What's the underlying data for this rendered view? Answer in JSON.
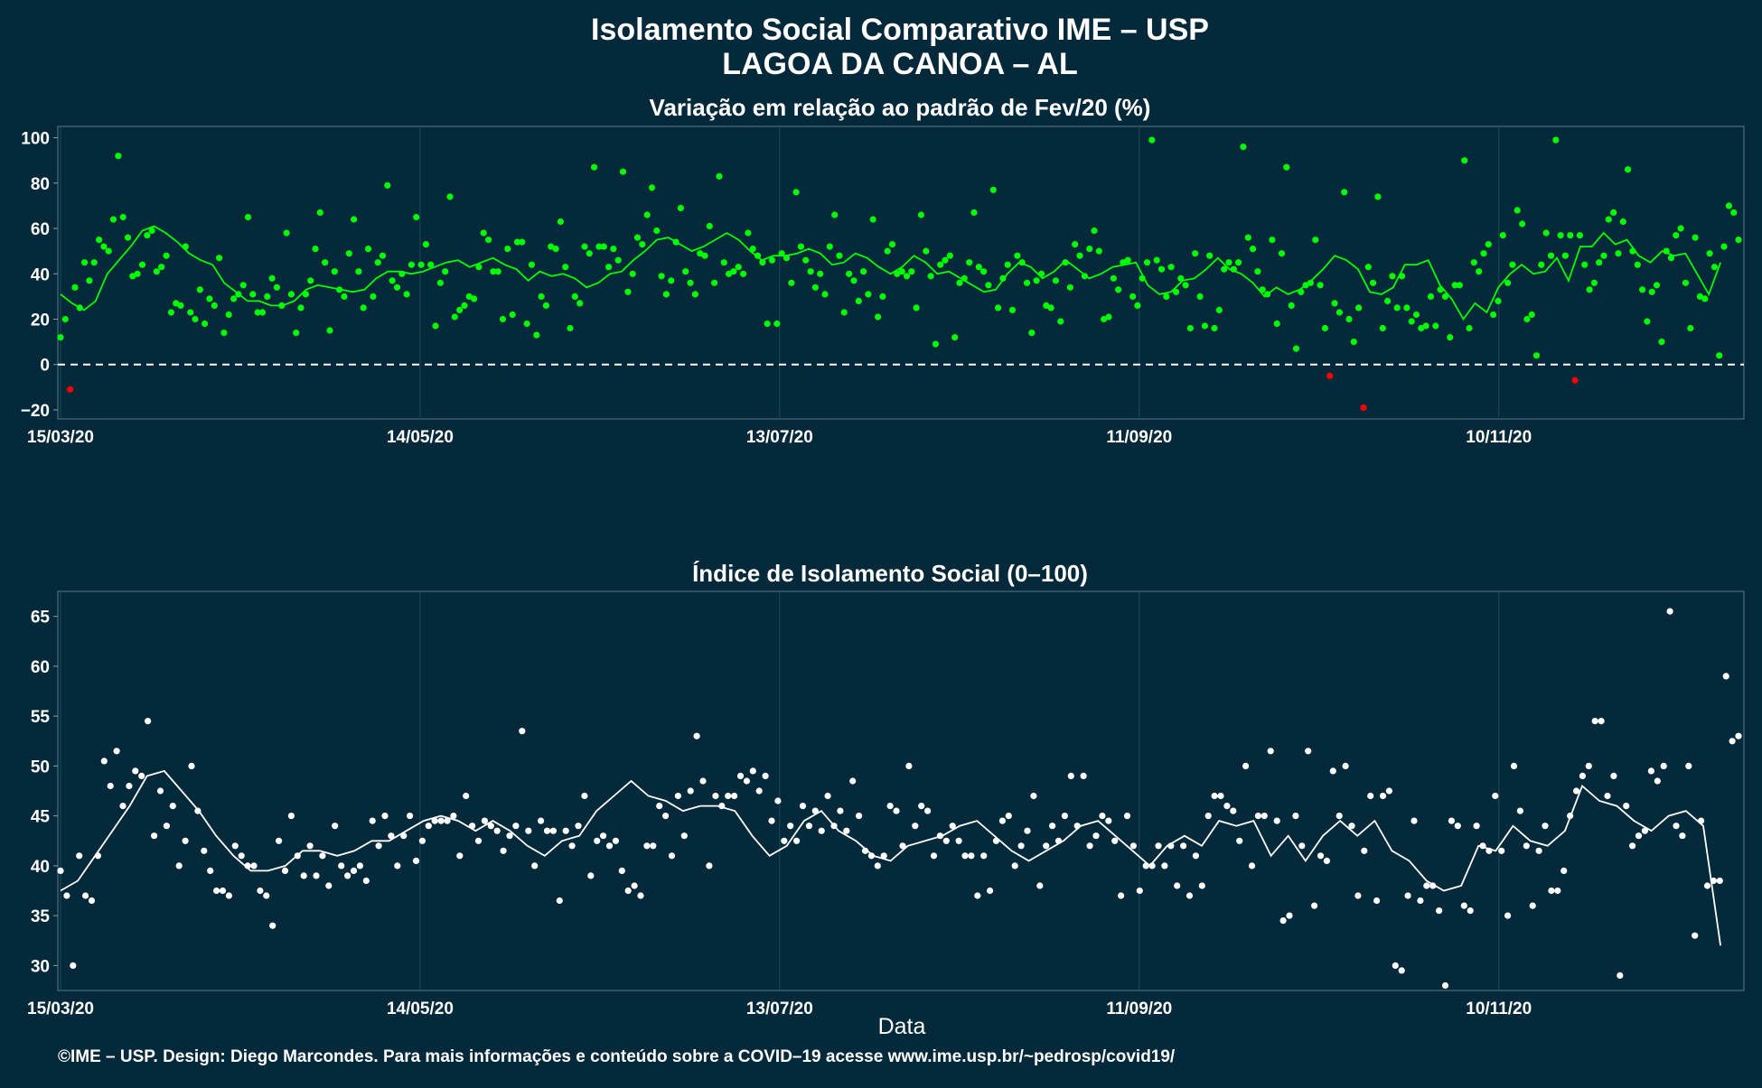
{
  "header": {
    "title_line1": "Isolamento Social Comparativo IME – USP",
    "title_line2": "LAGOA DA CANOA – AL"
  },
  "xlabel": "Data",
  "caption": "©IME – USP. Design: Diego Marcondes. Para mais informações e conteúdo sobre a COVID–19 acesse www.ime.usp.br/~pedrosp/covid19/",
  "colors": {
    "background": "#04293a",
    "positive": "#00ff00",
    "negative": "#ff0000",
    "index_points": "#ffffff",
    "moving_average_tail": "#ffffff",
    "grid": "#1c4a57",
    "zero_line": "#ffffff"
  },
  "chart_data": [
    {
      "type": "scatter",
      "title": "Variação em relação ao padrão de Fev/20 (%)",
      "x_start": "2020-03-15",
      "x_end": "2020-12-20",
      "x_ticks": [
        {
          "date": "2020-03-15",
          "label": "15/03/20"
        },
        {
          "date": "2020-05-14",
          "label": "14/05/20"
        },
        {
          "date": "2020-07-13",
          "label": "13/07/20"
        },
        {
          "date": "2020-09-11",
          "label": "11/09/20"
        },
        {
          "date": "2020-11-10",
          "label": "10/11/20"
        }
      ],
      "y_ticks": [
        -20,
        0,
        20,
        40,
        60,
        80,
        100
      ],
      "ylim": [
        -24,
        105
      ],
      "reference_line": 0,
      "grid": true,
      "series": [
        {
          "role": "points",
          "values": [
            12,
            20,
            -11,
            34,
            25,
            45,
            37,
            45,
            55,
            52,
            50,
            64,
            92,
            65,
            56,
            39,
            40,
            44,
            57,
            59,
            41,
            43,
            48,
            23,
            27,
            26,
            52,
            23,
            20,
            33,
            18,
            29,
            26,
            47,
            14,
            22,
            29,
            31,
            35,
            65,
            31,
            23,
            23,
            30,
            38,
            34,
            26,
            58,
            31,
            14,
            25,
            31,
            37,
            51,
            67,
            45,
            15,
            41,
            33,
            30,
            49,
            64,
            41,
            25,
            51,
            30,
            45,
            48,
            79,
            37,
            34,
            40,
            31,
            44,
            65,
            44,
            53,
            44,
            17,
            36,
            41,
            74,
            21,
            24,
            26,
            30,
            29,
            43,
            58,
            55,
            41,
            41,
            20,
            51,
            22,
            54,
            54,
            18,
            44,
            13,
            30,
            26,
            52,
            51,
            63,
            43,
            16,
            30,
            27,
            52,
            49,
            87,
            52,
            52,
            43,
            51,
            46,
            85,
            32,
            40,
            56,
            53,
            66,
            78,
            59,
            39,
            31,
            37,
            54,
            69,
            41,
            36,
            31,
            49,
            48,
            61,
            36,
            83,
            45,
            40,
            41,
            43,
            40,
            58,
            51,
            48,
            45,
            18,
            46,
            18,
            49,
            47,
            36,
            76,
            52,
            46,
            41,
            34,
            40,
            31,
            52,
            66,
            48,
            23,
            40,
            37,
            28,
            41,
            31,
            64,
            21,
            30,
            50,
            53,
            40,
            41,
            39,
            41,
            25,
            66,
            50,
            39,
            9,
            44,
            46,
            48,
            12,
            36,
            38,
            45,
            67,
            43,
            41,
            35,
            77,
            25,
            38,
            44,
            24,
            48,
            45,
            36,
            14,
            37,
            40,
            26,
            25,
            37,
            19,
            45,
            34,
            53,
            48,
            39,
            51,
            59,
            50,
            20,
            21,
            38,
            33,
            45,
            46,
            30,
            26,
            38,
            45,
            99,
            46,
            42,
            30,
            43,
            32,
            38,
            35,
            16,
            49,
            30,
            17,
            48,
            16,
            24,
            42,
            45,
            42,
            45,
            96,
            56,
            51,
            41,
            33,
            31,
            55,
            18,
            49,
            87,
            26,
            7,
            32,
            35,
            36,
            55,
            35,
            16,
            -5,
            27,
            23,
            76,
            20,
            10,
            25,
            -19,
            43,
            36,
            74,
            16,
            28,
            39,
            25,
            39,
            25,
            19,
            22,
            16,
            17,
            30,
            17,
            33,
            30,
            12,
            35,
            35,
            90,
            16,
            45,
            41,
            49,
            53,
            22,
            28,
            57,
            36,
            44,
            68,
            62,
            20,
            22,
            4,
            44,
            58,
            48,
            99,
            57,
            48,
            57,
            -7,
            57,
            44,
            33,
            36,
            45,
            48,
            64,
            67,
            49,
            63,
            86,
            50,
            44,
            33,
            19,
            32,
            35,
            10,
            50,
            47,
            57,
            60,
            36,
            16,
            56,
            30,
            29,
            49,
            43,
            4,
            52,
            70,
            67,
            55
          ]
        },
        {
          "role": "moving_average",
          "values": [
            31,
            27,
            24,
            28,
            40,
            46,
            52,
            59,
            61,
            58,
            54,
            49,
            46,
            44,
            36,
            32,
            28,
            28,
            26,
            26,
            28,
            33,
            35,
            34,
            33,
            32,
            33,
            38,
            41,
            41,
            40,
            41,
            43,
            45,
            46,
            43,
            45,
            47,
            44,
            42,
            37,
            41,
            39,
            40,
            38,
            34,
            36,
            40,
            41,
            46,
            50,
            55,
            56,
            53,
            50,
            52,
            55,
            58,
            55,
            50,
            46,
            48,
            48,
            49,
            51,
            49,
            44,
            45,
            49,
            47,
            43,
            40,
            43,
            48,
            45,
            40,
            41,
            38,
            35,
            32,
            33,
            40,
            45,
            43,
            38,
            41,
            46,
            42,
            38,
            40,
            43,
            44,
            45,
            35,
            31,
            32,
            37,
            38,
            42,
            47,
            42,
            40,
            36,
            30,
            34,
            31,
            33,
            37,
            42,
            48,
            46,
            42,
            32,
            31,
            34,
            44,
            44,
            46,
            35,
            29,
            20,
            27,
            23,
            34,
            40,
            44,
            40,
            41,
            47,
            37,
            52,
            52,
            58,
            53,
            55,
            48,
            45,
            50,
            48,
            49,
            40,
            31,
            45
          ]
        }
      ]
    },
    {
      "type": "scatter",
      "title": "Índice de Isolamento Social (0–100)",
      "x_start": "2020-03-15",
      "x_end": "2020-12-20",
      "x_ticks": [
        {
          "date": "2020-03-15",
          "label": "15/03/20"
        },
        {
          "date": "2020-05-14",
          "label": "14/05/20"
        },
        {
          "date": "2020-07-13",
          "label": "13/07/20"
        },
        {
          "date": "2020-09-11",
          "label": "11/09/20"
        },
        {
          "date": "2020-11-10",
          "label": "10/11/20"
        }
      ],
      "y_ticks": [
        30,
        35,
        40,
        45,
        50,
        55,
        60,
        65
      ],
      "ylim": [
        27.5,
        67.5
      ],
      "grid": true,
      "series": [
        {
          "role": "points",
          "values": [
            39.5,
            37,
            30,
            41,
            37,
            36.5,
            41,
            50.5,
            48,
            51.5,
            46,
            48,
            49.5,
            49,
            54.5,
            43,
            47.5,
            44,
            46,
            40,
            42.5,
            50,
            45.5,
            41.5,
            39.5,
            37.5,
            37.5,
            37,
            42,
            41,
            40,
            40,
            37.5,
            37,
            34,
            42.5,
            39.5,
            45,
            41,
            39,
            42,
            39,
            41,
            38,
            44,
            40,
            39,
            39.5,
            40,
            38.5,
            44.5,
            42,
            45,
            43,
            40,
            43,
            45,
            40.5,
            42.5,
            44,
            44.5,
            44.5,
            44.5,
            45,
            41,
            47,
            44,
            42.5,
            44.5,
            44,
            43.5,
            41.5,
            43,
            44,
            53.5,
            43.5,
            40,
            44.5,
            43.5,
            43.5,
            36.5,
            43.5,
            42,
            44,
            47,
            39,
            42.5,
            43,
            42,
            42.5,
            39.5,
            37.5,
            38,
            37,
            42,
            42,
            46,
            45,
            41,
            47,
            43,
            47.5,
            53,
            48.5,
            40,
            47,
            46,
            47,
            47,
            49,
            48.5,
            49.5,
            47.5,
            49,
            44.5,
            46.5,
            42.5,
            44,
            42.5,
            46,
            44,
            45.5,
            43.5,
            47,
            44,
            45.5,
            43.5,
            48.5,
            45,
            41.5,
            41,
            40,
            41,
            46,
            45.5,
            42,
            50,
            44,
            46,
            45.5,
            41,
            43,
            42.5,
            44,
            42.5,
            41,
            41,
            37,
            41,
            37.5,
            42.5,
            44.5,
            45,
            40,
            42,
            43.5,
            47,
            38,
            42,
            44,
            42.5,
            45,
            49,
            44,
            49,
            42,
            43,
            45,
            44.5,
            42.5,
            37,
            45,
            42,
            37.5,
            40,
            40,
            42,
            40,
            42,
            38,
            42,
            37,
            41,
            38,
            45,
            47,
            47,
            46,
            45.5,
            42.5,
            50,
            40,
            45,
            45,
            51.5,
            44.5,
            34.5,
            35,
            45,
            42,
            51.5,
            36,
            41,
            40.5,
            49.5,
            45,
            50,
            44,
            37,
            41.5,
            47,
            36.5,
            47,
            47.5,
            30,
            29.5,
            37,
            44.5,
            36.5,
            38,
            38,
            35.5,
            28,
            44.5,
            44,
            36,
            35.5,
            44,
            42,
            41.5,
            47,
            41.5,
            35,
            50,
            45.5,
            42,
            36,
            41.5,
            44,
            37.5,
            37.5,
            39.5,
            45,
            47.5,
            49,
            50,
            54.5,
            54.5,
            47,
            49,
            29,
            46,
            42,
            43,
            43.5,
            49.5,
            48.5,
            50,
            65.5,
            44,
            43,
            50,
            33,
            44.5,
            38,
            38.5,
            38.5,
            59,
            52.5,
            53
          ]
        },
        {
          "role": "moving_average",
          "values": [
            37.5,
            38.5,
            41,
            43.5,
            46,
            49,
            49.5,
            47.5,
            45.5,
            43,
            41,
            39.5,
            39.5,
            40,
            41.5,
            41.5,
            41,
            41.5,
            42.5,
            42.5,
            43.5,
            44.5,
            45,
            44.5,
            43.5,
            44.5,
            43.5,
            42,
            41,
            42.5,
            43,
            45.5,
            47,
            48.5,
            47,
            46.5,
            45.5,
            46,
            46,
            45.5,
            43,
            41,
            42,
            44.5,
            45.5,
            43.5,
            42.5,
            41,
            40.5,
            42,
            42.5,
            43,
            44,
            44.5,
            43,
            41.5,
            40.5,
            41.5,
            42.5,
            44,
            44.5,
            43,
            41.5,
            40,
            42,
            43,
            42,
            44.5,
            44,
            44.5,
            41,
            43,
            40.5,
            43,
            44.5,
            43,
            44.5,
            41.5,
            40.5,
            38.5,
            37.5,
            38,
            42,
            41.5,
            44,
            42.5,
            42,
            43.5,
            48,
            46.5,
            46,
            44.5,
            43.5,
            45,
            45.5,
            44,
            32
          ]
        }
      ]
    }
  ]
}
